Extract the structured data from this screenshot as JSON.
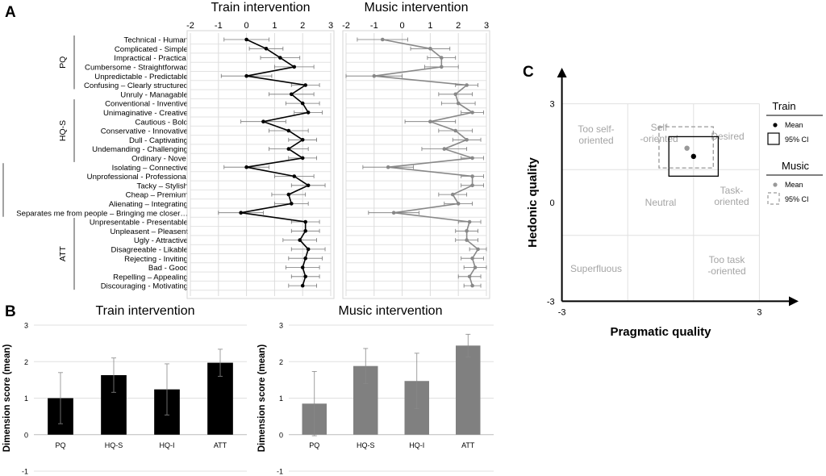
{
  "panel_labels": {
    "a": "A",
    "b": "B",
    "c": "C"
  },
  "chart_data": [
    {
      "id": "a-train",
      "type": "line",
      "title": "Train intervention",
      "xlim": [
        -2,
        3
      ],
      "xticks": [
        "-2",
        "-1",
        "0",
        "1",
        "2",
        "3"
      ],
      "grid": true,
      "orientation": "horizontal",
      "color": "#000000",
      "categories": [
        "Technical - Human",
        "Complicated - Simple",
        "Impractical - Practical",
        "Cumbersome - Straightforwad",
        "Unpredictable - Predictable",
        "Confusing – Clearly structured",
        "Unruly - Managable",
        "Conventional - Inventive",
        "Unimaginative - Creative",
        "Cautious - Bold",
        "Conservative - Innovative",
        "Dull - Captivating",
        "Undemanding - Challenging",
        "Ordinary - Novel",
        "Isolating – Connective",
        "Unprofessional - Professional",
        "Tacky – Stylish",
        "Cheap – Premium",
        "Alienating – Integrating",
        "Separates me from people – Bringing me closer…",
        "Unpresentable - Presentable",
        "Unpleasent – Pleasent",
        "Ugly - Attractive",
        "Disagreeable - Likable",
        "Rejecting - Inviting",
        "Bad - Good",
        "Repelling – Appealing",
        "Discouraging - Motivating"
      ],
      "values": [
        0.0,
        0.7,
        1.2,
        1.7,
        0.0,
        2.1,
        1.6,
        2.0,
        2.2,
        0.6,
        1.5,
        2.0,
        1.5,
        2.0,
        0.0,
        1.7,
        2.2,
        1.5,
        1.6,
        -0.2,
        2.1,
        2.1,
        1.9,
        2.2,
        2.1,
        2.0,
        2.1,
        2.0
      ],
      "errors": [
        0.8,
        0.6,
        0.7,
        0.7,
        0.9,
        0.5,
        0.8,
        0.6,
        0.5,
        0.8,
        0.7,
        0.5,
        0.7,
        0.5,
        0.8,
        0.7,
        0.6,
        0.6,
        0.6,
        0.8,
        0.5,
        0.5,
        0.6,
        0.6,
        0.6,
        0.6,
        0.5,
        0.5
      ]
    },
    {
      "id": "a-music",
      "type": "line",
      "title": "Music intervention",
      "xlim": [
        -2,
        3
      ],
      "xticks": [
        "-2",
        "-1",
        "0",
        "1",
        "2",
        "3"
      ],
      "grid": true,
      "orientation": "horizontal",
      "color": "#888888",
      "categories": [
        "Technical - Human",
        "Complicated - Simple",
        "Impractical - Practical",
        "Cumbersome - Straightforwad",
        "Unpredictable - Predictable",
        "Confusing – Clearly structured",
        "Unruly - Managable",
        "Conventional - Inventive",
        "Unimaginative - Creative",
        "Cautious - Bold",
        "Conservative - Innovative",
        "Dull - Captivating",
        "Undemanding - Challenging",
        "Ordinary - Novel",
        "Isolating – Connective",
        "Unprofessional - Professional",
        "Tacky – Stylish",
        "Cheap – Premium",
        "Alienating – Integrating",
        "Separates me from people – Bringing me closer…",
        "Unpresentable - Presentable",
        "Unpleasent – Pleasent",
        "Ugly - Attractive",
        "Disagreeable - Likable",
        "Rejecting - Inviting",
        "Bad - Good",
        "Repelling – Appealing",
        "Discouraging - Motivating"
      ],
      "values": [
        -0.7,
        1.0,
        1.4,
        1.4,
        -1.0,
        2.3,
        1.9,
        2.0,
        2.5,
        1.0,
        1.9,
        2.3,
        1.5,
        2.5,
        -0.5,
        2.5,
        2.5,
        1.8,
        2.0,
        -0.3,
        2.4,
        2.3,
        2.3,
        2.7,
        2.5,
        2.6,
        2.4,
        2.5
      ],
      "errors": [
        0.9,
        0.7,
        0.5,
        0.6,
        1.0,
        0.4,
        0.6,
        0.6,
        0.4,
        0.9,
        0.6,
        0.5,
        0.8,
        0.4,
        0.9,
        0.4,
        0.4,
        0.5,
        0.5,
        0.9,
        0.4,
        0.4,
        0.4,
        0.3,
        0.4,
        0.4,
        0.4,
        0.3
      ]
    },
    {
      "id": "b-train",
      "type": "bar",
      "title": "Train intervention",
      "ylabel": "Dimension score (mean)",
      "ylim": [
        -1,
        3
      ],
      "yticks": [
        "-1",
        "0",
        "1",
        "2",
        "3"
      ],
      "categories": [
        "PQ",
        "HQ-S",
        "HQ-I",
        "ATT"
      ],
      "values": [
        1.0,
        1.63,
        1.24,
        1.97
      ],
      "errors": [
        0.7,
        0.47,
        0.7,
        0.37
      ],
      "color": "#000000"
    },
    {
      "id": "b-music",
      "type": "bar",
      "title": "Music intervention",
      "ylabel": "Dimension score (mean)",
      "ylim": [
        -1,
        3
      ],
      "yticks": [
        "-1",
        "0",
        "1",
        "2",
        "3"
      ],
      "categories": [
        "PQ",
        "HQ-S",
        "HQ-I",
        "ATT"
      ],
      "values": [
        0.85,
        1.88,
        1.47,
        2.44
      ],
      "errors": [
        0.88,
        0.48,
        0.76,
        0.31
      ],
      "color": "#808080"
    },
    {
      "id": "c",
      "type": "scatter",
      "xlabel": "Pragmatic quality",
      "ylabel": "Hedonic quality",
      "xlim": [
        -3,
        3
      ],
      "ylim": [
        -3,
        3
      ],
      "xticks": [
        "-3",
        "3"
      ],
      "yticks": [
        "3",
        "0",
        "-3"
      ],
      "regions": [
        "Too self-oriented",
        "Self-oriented",
        "Desired",
        "Neutral",
        "Task-oriented",
        "Superfluous",
        "Too task-oriented"
      ],
      "series": [
        {
          "name": "Train",
          "mean": [
            1.0,
            1.4
          ],
          "ci_x": [
            0.25,
            1.75
          ],
          "ci_y": [
            0.8,
            2.0
          ],
          "color": "#000000"
        },
        {
          "name": "Music",
          "mean": [
            0.8,
            1.65
          ],
          "ci_x": [
            -0.05,
            1.6
          ],
          "ci_y": [
            1.05,
            2.3
          ],
          "color": "#999999"
        }
      ],
      "legend": {
        "train_title": "Train",
        "music_title": "Music",
        "mean_label": "Mean",
        "ci_label": "95% CI"
      }
    }
  ],
  "group_labels": [
    "PQ",
    "HQ-S",
    "HQ-I",
    "ATT"
  ]
}
